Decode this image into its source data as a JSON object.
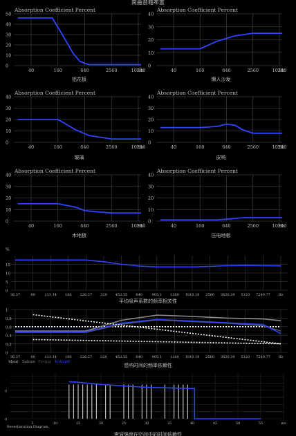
{
  "page_title": "南曲音箱布置",
  "chart_data": [
    {
      "type": "line",
      "title": "Absorption Coefficient Percent",
      "caption": "铝花板",
      "x_ticks": [
        "40",
        "160",
        "640",
        "2560",
        "10240",
        "Hz"
      ],
      "y_ticks": [
        "50",
        "40",
        "30",
        "20",
        "10",
        "0"
      ],
      "ylim": [
        0,
        50
      ],
      "series": [
        {
          "x": [
            20,
            80,
            120,
            200,
            350,
            500,
            800,
            20480
          ],
          "y": [
            46,
            46,
            46,
            30,
            12,
            4,
            1,
            1
          ]
        }
      ]
    },
    {
      "type": "line",
      "title": "Absorption Coefficient Percent",
      "caption": "懒人沙发",
      "x_ticks": [
        "40",
        "160",
        "640",
        "2560",
        "10240",
        "Hz"
      ],
      "y_ticks": [
        "40",
        "30",
        "20",
        "10",
        "0"
      ],
      "ylim": [
        0,
        40
      ],
      "series": [
        {
          "x": [
            20,
            160,
            400,
            1000,
            2560,
            20480
          ],
          "y": [
            13,
            13,
            19,
            23,
            25,
            25
          ]
        }
      ]
    },
    {
      "type": "line",
      "title": "Absorption Coefficient Percent",
      "caption": "玻璃",
      "x_ticks": [
        "40",
        "160",
        "640",
        "2560",
        "10240",
        "Hz"
      ],
      "y_ticks": [
        "40",
        "30",
        "20",
        "10",
        "0"
      ],
      "ylim": [
        0,
        40
      ],
      "series": [
        {
          "x": [
            20,
            160,
            400,
            800,
            2560,
            5000,
            20480
          ],
          "y": [
            20,
            20,
            11,
            6,
            3,
            3,
            3
          ]
        }
      ]
    },
    {
      "type": "line",
      "title": "Absorption Coefficient Percent",
      "caption": "皮椅",
      "x_ticks": [
        "40",
        "160",
        "640",
        "2560",
        "10240",
        "Hz"
      ],
      "y_ticks": [
        "40",
        "30",
        "20",
        "10",
        "0"
      ],
      "ylim": [
        0,
        40
      ],
      "series": [
        {
          "x": [
            20,
            160,
            400,
            640,
            1000,
            1500,
            2560,
            4000,
            20480
          ],
          "y": [
            13,
            13,
            14,
            16,
            15,
            11,
            8,
            8,
            8
          ]
        }
      ]
    },
    {
      "type": "line",
      "title": "Absorption Coefficient Percent",
      "caption": "木地板",
      "x_ticks": [
        "40",
        "160",
        "640",
        "2560",
        "10240",
        "Hz"
      ],
      "y_ticks": [
        "40",
        "30",
        "20",
        "10",
        "0"
      ],
      "ylim": [
        0,
        40
      ],
      "series": [
        {
          "x": [
            20,
            160,
            400,
            640,
            1280,
            2560,
            20480
          ],
          "y": [
            15,
            15,
            12,
            9,
            8,
            7,
            7
          ]
        }
      ]
    },
    {
      "type": "line",
      "title": "Absorption Coefficient Percent",
      "caption": "压电地板",
      "x_ticks": [
        "40",
        "160",
        "640",
        "2560",
        "10240",
        "Hz"
      ],
      "y_ticks": [
        "40",
        "30",
        "20",
        "10",
        "0"
      ],
      "ylim": [
        0,
        40
      ],
      "series": [
        {
          "x": [
            20,
            160,
            400,
            800,
            1600,
            20480
          ],
          "y": [
            1,
            1,
            1,
            2,
            3,
            3
          ]
        }
      ]
    },
    {
      "type": "line",
      "caption": "平均吸声系数的频率相关性",
      "y_unit": "%",
      "y_ticks": [
        "15",
        "10",
        "5",
        "0"
      ],
      "ylim": [
        0,
        20
      ],
      "x_ticks": [
        "36.37",
        "80",
        "113.14",
        "160",
        "226.27",
        "320",
        "452.55",
        "640",
        "905.1",
        "1280",
        "1810.19",
        "2560",
        "3620.39",
        "5120",
        "7240.77",
        "Hz"
      ],
      "series": [
        {
          "x": [
            0,
            4,
            5,
            6,
            7,
            8,
            9,
            10,
            11,
            12,
            13,
            14,
            15
          ],
          "y": [
            17.5,
            17.5,
            16.5,
            15,
            14,
            13.5,
            13.5,
            13.5,
            13.8,
            14.2,
            14.3,
            14.2,
            14.1
          ]
        }
      ]
    },
    {
      "type": "line",
      "caption": "混响时间的频率依赖性",
      "y_ticks": [
        "1",
        "0.8",
        "0.6",
        "0.4",
        "0.2",
        "0"
      ],
      "ylim": [
        0,
        1
      ],
      "x_ticks": [
        "36.37",
        "80",
        "113.14",
        "160",
        "226.27",
        "320",
        "452.55",
        "640",
        "905.1",
        "1280",
        "1810.19",
        "2560",
        "3620.39",
        "5120",
        "7240.77",
        "Hz"
      ],
      "legend": [
        "Ideal",
        "Sabine",
        "Eyring",
        "Kuttruff"
      ],
      "series": [
        {
          "name": "Ideal",
          "style": "dotted",
          "x": [
            0,
            15
          ],
          "y": [
            0.6,
            0.6
          ]
        },
        {
          "name": "Sabine",
          "color": "#888888",
          "x": [
            0,
            4,
            6,
            8,
            10,
            12,
            14,
            15
          ],
          "y": [
            0.5,
            0.5,
            0.75,
            0.87,
            0.84,
            0.8,
            0.78,
            0.74
          ]
        },
        {
          "name": "Eyring",
          "color": "#555555",
          "x": [
            0,
            4,
            6,
            8,
            10,
            12,
            14,
            15
          ],
          "y": [
            0.47,
            0.47,
            0.66,
            0.76,
            0.72,
            0.68,
            0.62,
            0.5
          ]
        },
        {
          "name": "Kuttruff",
          "color": "#2f44ff",
          "x": [
            0,
            4,
            6,
            8,
            10,
            12,
            14,
            15
          ],
          "y": [
            0.48,
            0.48,
            0.68,
            0.77,
            0.73,
            0.69,
            0.65,
            0.44
          ]
        },
        {
          "style": "dotted",
          "x": [
            1,
            15
          ],
          "y": [
            0.88,
            0.2
          ]
        },
        {
          "style": "dotted",
          "x": [
            1,
            15
          ],
          "y": [
            0.3,
            0.2
          ]
        }
      ]
    },
    {
      "type": "line",
      "caption": "声波强度在空间中的时间依赖性",
      "y_ticks": [
        "5",
        "0"
      ],
      "x_ticks": [
        "5",
        "10",
        "15",
        "20",
        "25",
        "30",
        "35",
        "40",
        "45",
        "50",
        "55",
        "ms"
      ],
      "legend_text": "Reverberation Diagram",
      "series": [
        {
          "name": "envelope",
          "color": "#2f44ff",
          "x": [
            13,
            15,
            20,
            30,
            40,
            40.5,
            40.5,
            55
          ],
          "y": [
            6.5,
            6.4,
            6.0,
            5.5,
            5.3,
            5.3,
            0,
            0
          ]
        }
      ],
      "spikes_ms": [
        13,
        14,
        15,
        16,
        17,
        18,
        19,
        21,
        22,
        25,
        26,
        27,
        29,
        30,
        31,
        34,
        36,
        37,
        38,
        39
      ]
    }
  ]
}
